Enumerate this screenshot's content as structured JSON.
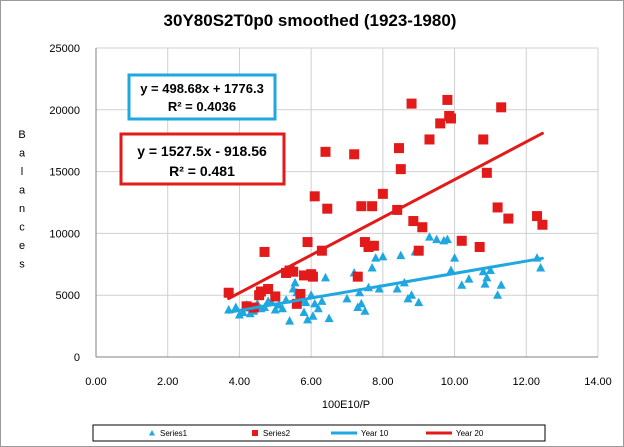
{
  "chart_data": {
    "type": "scatter",
    "title": "30Y80S2T0p0 smoothed (1923-1980)",
    "xlabel": "100E10/P",
    "ylabel": "Balances",
    "xlim": [
      0,
      14
    ],
    "ylim": [
      0,
      25000
    ],
    "x_ticks": [
      "0.00",
      "2.00",
      "4.00",
      "6.00",
      "8.00",
      "10.00",
      "12.00",
      "14.00"
    ],
    "y_ticks": [
      "0",
      "5000",
      "10000",
      "15000",
      "20000",
      "25000"
    ],
    "grid": true,
    "legend_position": "bottom",
    "series": [
      {
        "name": "Series1",
        "marker": "triangle",
        "color": "#1fa7e0",
        "x": [
          3.7,
          3.9,
          4.0,
          4.1,
          4.2,
          4.3,
          4.4,
          4.5,
          4.6,
          4.7,
          4.8,
          4.9,
          5.0,
          5.1,
          5.2,
          5.3,
          5.4,
          5.5,
          5.55,
          5.6,
          5.7,
          5.8,
          5.85,
          5.9,
          6.0,
          6.05,
          6.1,
          6.2,
          6.3,
          6.4,
          6.5,
          7.0,
          7.2,
          7.3,
          7.35,
          7.4,
          7.5,
          7.6,
          7.7,
          7.8,
          7.9,
          8.0,
          8.4,
          8.5,
          8.6,
          8.7,
          8.8,
          8.9,
          9.0,
          9.3,
          9.5,
          9.7,
          9.8,
          9.9,
          10.0,
          10.2,
          10.4,
          10.8,
          10.85,
          10.9,
          11.0,
          11.2,
          11.3,
          12.3,
          12.4
        ],
        "y": [
          3800,
          4000,
          3400,
          3600,
          4200,
          3500,
          3700,
          4300,
          3900,
          4000,
          4500,
          4400,
          3800,
          4200,
          3900,
          4600,
          2900,
          5500,
          6000,
          5200,
          4600,
          3600,
          4400,
          3000,
          5000,
          3300,
          4300,
          3900,
          4500,
          6400,
          3100,
          4700,
          6800,
          4000,
          5200,
          4300,
          3700,
          5600,
          7200,
          8000,
          5500,
          8100,
          5500,
          8200,
          6000,
          4700,
          5000,
          8500,
          4400,
          9700,
          9500,
          9400,
          9500,
          7000,
          8000,
          5800,
          6300,
          6900,
          5900,
          6400,
          7000,
          5000,
          5800,
          8000,
          7200
        ]
      },
      {
        "name": "Series2",
        "marker": "square",
        "color": "#e31a1a",
        "x": [
          3.7,
          4.2,
          4.4,
          4.55,
          4.6,
          4.7,
          4.8,
          5.0,
          5.3,
          5.4,
          5.5,
          5.6,
          5.7,
          5.8,
          5.9,
          6.0,
          6.05,
          6.1,
          6.3,
          6.4,
          6.45,
          7.2,
          7.3,
          7.4,
          7.5,
          7.6,
          7.7,
          7.75,
          8.0,
          8.4,
          8.45,
          8.5,
          8.8,
          8.85,
          9.0,
          9.1,
          9.3,
          9.6,
          9.8,
          9.85,
          9.9,
          10.2,
          10.7,
          10.8,
          10.9,
          11.2,
          11.3,
          11.5,
          12.3,
          12.45
        ],
        "y": [
          5200,
          4100,
          4000,
          5000,
          5300,
          8500,
          5500,
          4900,
          6800,
          7000,
          6900,
          4300,
          5100,
          6600,
          9300,
          6700,
          6500,
          13000,
          8600,
          16600,
          12000,
          16400,
          6500,
          12200,
          9300,
          8900,
          12200,
          9000,
          13200,
          11900,
          16900,
          15200,
          20500,
          11000,
          8600,
          10500,
          17600,
          18900,
          20800,
          19500,
          19300,
          9400,
          8900,
          17600,
          14900,
          12100,
          20200,
          11200,
          11400,
          10700
        ]
      },
      {
        "name": "Year 10",
        "type": "trendline",
        "color": "#1fa7e0",
        "equation": "y = 498.68x + 1776.3",
        "r2_label": "R² = 0.4036",
        "slope": 498.68,
        "intercept": 1776.3,
        "x_range": [
          3.7,
          12.45
        ]
      },
      {
        "name": "Year 20",
        "type": "trendline",
        "color": "#e31a1a",
        "equation": "y = 1527.5x - 918.56",
        "r2_label": "R² = 0.481",
        "slope": 1527.5,
        "intercept": -918.56,
        "x_range": [
          3.7,
          12.45
        ]
      }
    ]
  }
}
